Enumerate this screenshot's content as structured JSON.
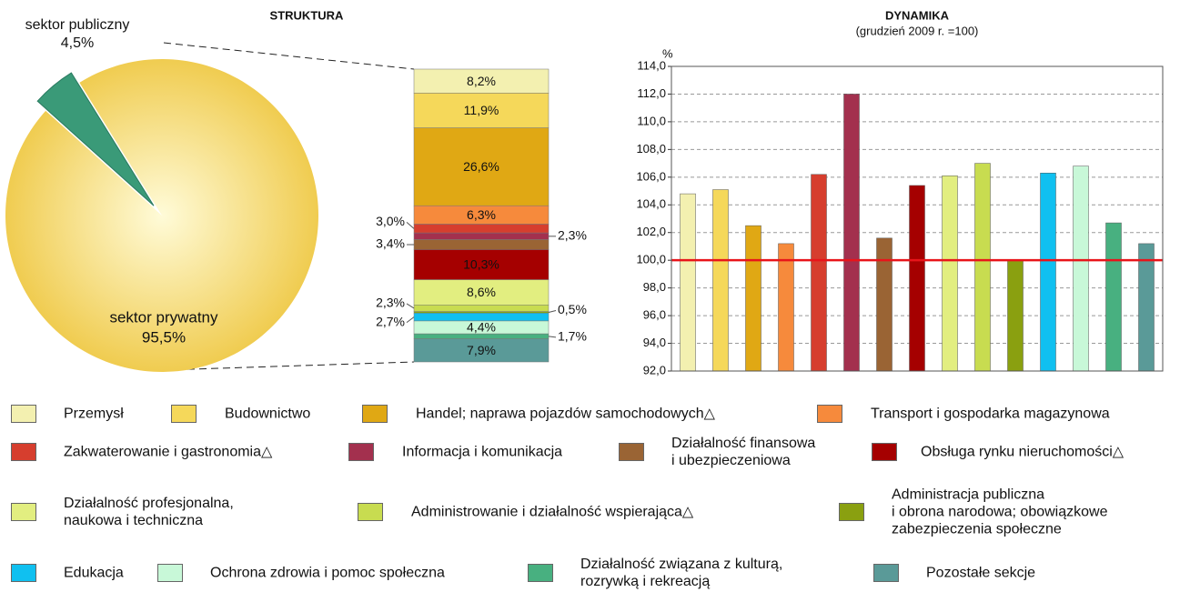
{
  "chart_data": [
    {
      "type": "pie",
      "categories": [
        "sektor publiczny",
        "sektor prywatny"
      ],
      "values": [
        4.5,
        95.5
      ],
      "value_labels": [
        "4,5%",
        "95,5%"
      ],
      "colors": [
        "#3a9a78",
        "#f0cc50"
      ]
    },
    {
      "type": "stacked_bar",
      "title": "STRUKTURA",
      "series": [
        {
          "name": "Przemysł",
          "color": "#f3f0b0",
          "values": [
            8.2
          ],
          "value_labels": [
            "8,2%"
          ]
        },
        {
          "name": "Budownictwo",
          "color": "#f5d85a",
          "values": [
            11.9
          ],
          "value_labels": [
            "11,9%"
          ]
        },
        {
          "name": "Handel; naprawa pojazdów samochodowych△",
          "color": "#e0a814",
          "values": [
            26.6
          ],
          "value_labels": [
            "26,6%"
          ]
        },
        {
          "name": "Transport i gospodarka magazynowa",
          "color": "#f68a3c",
          "values": [
            6.3
          ],
          "value_labels": [
            "6,3%"
          ]
        },
        {
          "name": "Zakwaterowanie i gastronomia△",
          "color": "#d63e2e",
          "values": [
            3.0
          ],
          "value_labels": [
            "3,0%"
          ]
        },
        {
          "name": "Informacja i komunikacja",
          "color": "#a3304e",
          "values": [
            2.3
          ],
          "value_labels": [
            "2,3%"
          ]
        },
        {
          "name": "Działalność finansowa\ni ubezpieczeniowa",
          "color": "#9a6434",
          "values": [
            3.4
          ],
          "value_labels": [
            "3,4%"
          ]
        },
        {
          "name": "Obsługa rynku nieruchomości△",
          "color": "#a50000",
          "values": [
            10.3
          ],
          "value_labels": [
            "10,3%"
          ]
        },
        {
          "name": "Działalność profesjonalna,\nnaukowa i techniczna",
          "color": "#e2ee80",
          "values": [
            8.6
          ],
          "value_labels": [
            "8,6%"
          ]
        },
        {
          "name": "Administrowanie i działalność wspierająca△",
          "color": "#c8dc50",
          "values": [
            2.3
          ],
          "value_labels": [
            "2,3%"
          ]
        },
        {
          "name": "Administracja publiczna\ni obrona narodowa; obowiązkowe\nzabezpieczenia społeczne",
          "color": "#8aa010",
          "values": [
            0.5
          ],
          "value_labels": [
            "0,5%"
          ]
        },
        {
          "name": "Edukacja",
          "color": "#10c0f0",
          "values": [
            2.7
          ],
          "value_labels": [
            "2,7%"
          ]
        },
        {
          "name": "Ochrona zdrowia i pomoc społeczna",
          "color": "#c8f8d8",
          "values": [
            4.4
          ],
          "value_labels": [
            "4,4%"
          ]
        },
        {
          "name": "Działalność związana z kulturą,\nrozrywką i rekreacją",
          "color": "#48b080",
          "values": [
            1.7
          ],
          "value_labels": [
            "1,7%"
          ]
        },
        {
          "name": "Pozostałe sekcje",
          "color": "#5a9a98",
          "values": [
            7.9
          ],
          "value_labels": [
            "7,9%"
          ]
        }
      ]
    },
    {
      "type": "bar",
      "title": "DYNAMIKA",
      "subtitle": "(grudzień 2009 r. =100)",
      "ylabel": "%",
      "values": [
        104.8,
        105.1,
        102.5,
        101.2,
        106.2,
        112.0,
        101.6,
        105.4,
        106.1,
        107.0,
        100.0,
        106.3,
        106.8,
        102.7,
        101.2
      ],
      "colors": [
        "#f3f0b0",
        "#f5d85a",
        "#e0a814",
        "#f68a3c",
        "#d63e2e",
        "#a3304e",
        "#9a6434",
        "#a50000",
        "#e2ee80",
        "#c8dc50",
        "#8aa010",
        "#10c0f0",
        "#c8f8d8",
        "#48b080",
        "#5a9a98"
      ],
      "ylim": [
        92,
        114
      ],
      "yticks": [
        {
          "value": 92,
          "label": "92,0"
        },
        {
          "value": 94,
          "label": "94,0"
        },
        {
          "value": 96,
          "label": "96,0"
        },
        {
          "value": 98,
          "label": "98,0"
        },
        {
          "value": 100,
          "label": "100,0"
        },
        {
          "value": 102,
          "label": "102,0"
        },
        {
          "value": 104,
          "label": "104,0"
        },
        {
          "value": 106,
          "label": "106,0"
        },
        {
          "value": 108,
          "label": "108,0"
        },
        {
          "value": 110,
          "label": "110,0"
        },
        {
          "value": 112,
          "label": "112,0"
        },
        {
          "value": 114,
          "label": "114,0"
        }
      ],
      "grid": true,
      "reference_line": 100,
      "reference_color": "#e8141a"
    }
  ]
}
